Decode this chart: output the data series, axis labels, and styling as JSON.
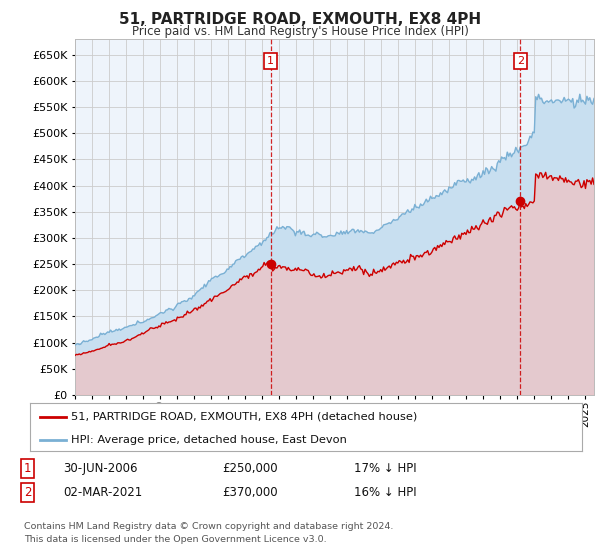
{
  "title": "51, PARTRIDGE ROAD, EXMOUTH, EX8 4PH",
  "subtitle": "Price paid vs. HM Land Registry's House Price Index (HPI)",
  "ylim": [
    0,
    680000
  ],
  "yticks": [
    0,
    50000,
    100000,
    150000,
    200000,
    250000,
    300000,
    350000,
    400000,
    450000,
    500000,
    550000,
    600000,
    650000
  ],
  "xlim_start": 1995.0,
  "xlim_end": 2025.5,
  "t1_x": 2006.5,
  "t1_price": 250000,
  "t2_x": 2021.17,
  "t2_price": 370000,
  "legend_property": "51, PARTRIDGE ROAD, EXMOUTH, EX8 4PH (detached house)",
  "legend_hpi": "HPI: Average price, detached house, East Devon",
  "footer1": "Contains HM Land Registry data © Crown copyright and database right 2024.",
  "footer2": "This data is licensed under the Open Government Licence v3.0.",
  "row1_date": "30-JUN-2006",
  "row1_price": "£250,000",
  "row1_pct": "17% ↓ HPI",
  "row2_date": "02-MAR-2021",
  "row2_price": "£370,000",
  "row2_pct": "16% ↓ HPI",
  "property_color": "#cc0000",
  "hpi_color": "#7ab0d4",
  "hpi_fill_color": "#c8dff0",
  "prop_fill_color": "#f0c0c0",
  "vline_color": "#cc0000",
  "grid_color": "#cccccc",
  "background_color": "#ffffff",
  "plot_bg_color": "#eef4fb",
  "box_color": "#cc0000",
  "n_months": 366
}
